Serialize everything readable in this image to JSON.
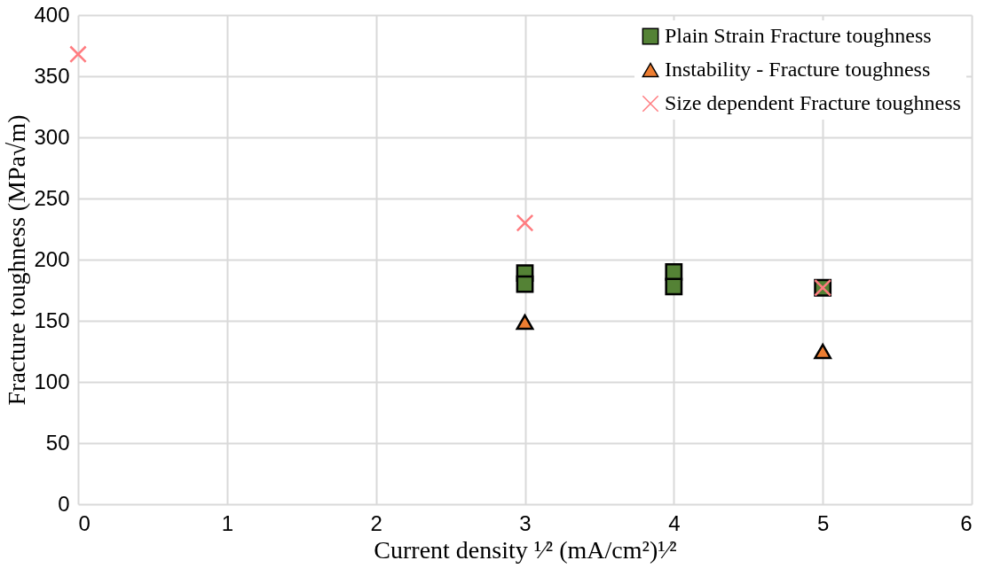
{
  "chart_data": {
    "type": "scatter",
    "xlabel": "Current density ¹⁄² (mA/cm²)¹⁄²",
    "ylabel": "Fracture toughness (MPa√m)",
    "xlim": [
      0,
      6
    ],
    "xticks": [
      0,
      1,
      2,
      3,
      4,
      5,
      6
    ],
    "ylim": [
      0,
      400
    ],
    "yticks": [
      0,
      50,
      100,
      150,
      200,
      250,
      300,
      350,
      400
    ],
    "grid": true,
    "legend": "top right",
    "series": [
      {
        "name": "Plain Strain Fracture toughness",
        "color": "#548235",
        "marker": "square",
        "x": [
          3,
          3,
          4,
          4,
          5
        ],
        "values": [
          189,
          180,
          190,
          178,
          177
        ]
      },
      {
        "name": "Instability - Fracture toughness",
        "color": "#ed7d31",
        "marker": "triangle",
        "x": [
          3,
          5
        ],
        "values": [
          149,
          125
        ]
      },
      {
        "name": "Size dependent Fracture toughness",
        "color": "#ff7c80",
        "marker": "cross",
        "x": [
          0,
          3,
          5
        ],
        "values": [
          368,
          230,
          177
        ]
      }
    ]
  }
}
